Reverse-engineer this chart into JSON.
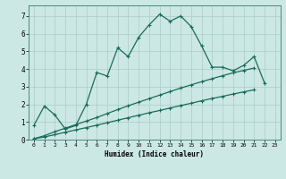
{
  "xlabel": "Humidex (Indice chaleur)",
  "background_color": "#cce8e4",
  "grid_color": "#aaccca",
  "line_color": "#1a6b5a",
  "xlim": [
    -0.5,
    23.5
  ],
  "ylim": [
    0,
    7.6
  ],
  "xticks": [
    0,
    1,
    2,
    3,
    4,
    5,
    6,
    7,
    8,
    9,
    10,
    11,
    12,
    13,
    14,
    15,
    16,
    17,
    18,
    19,
    20,
    21,
    22,
    23
  ],
  "yticks": [
    0,
    1,
    2,
    3,
    4,
    5,
    6,
    7
  ],
  "line1_x": [
    0,
    1,
    2,
    3,
    4,
    5,
    6,
    7,
    8,
    9,
    10,
    11,
    12,
    13,
    14,
    15,
    16,
    17,
    18,
    19,
    20,
    21,
    22
  ],
  "line1_y": [
    0.8,
    1.9,
    1.4,
    0.6,
    0.8,
    2.0,
    3.8,
    3.6,
    5.2,
    4.7,
    5.8,
    6.5,
    7.1,
    6.7,
    7.0,
    6.4,
    5.3,
    4.1,
    4.1,
    3.9,
    4.2,
    4.7,
    3.2
  ],
  "line2_x": [
    0,
    1,
    2,
    3,
    4,
    5,
    6,
    7,
    8,
    9,
    10,
    11,
    12,
    13,
    14,
    15,
    16,
    17,
    18,
    19,
    20,
    21
  ],
  "line2_y": [
    0.05,
    0.15,
    0.28,
    0.42,
    0.55,
    0.68,
    0.82,
    0.96,
    1.1,
    1.24,
    1.38,
    1.52,
    1.65,
    1.79,
    1.93,
    2.06,
    2.2,
    2.33,
    2.45,
    2.58,
    2.7,
    2.82
  ],
  "line3_x": [
    0,
    1,
    2,
    3,
    4,
    5,
    6,
    7,
    8,
    9,
    10,
    11,
    12,
    13,
    14,
    15,
    16,
    17,
    18,
    19,
    20,
    21
  ],
  "line3_y": [
    0.05,
    0.22,
    0.45,
    0.65,
    0.85,
    1.05,
    1.25,
    1.48,
    1.7,
    1.92,
    2.12,
    2.32,
    2.52,
    2.72,
    2.92,
    3.1,
    3.28,
    3.45,
    3.62,
    3.78,
    3.92,
    4.05
  ]
}
